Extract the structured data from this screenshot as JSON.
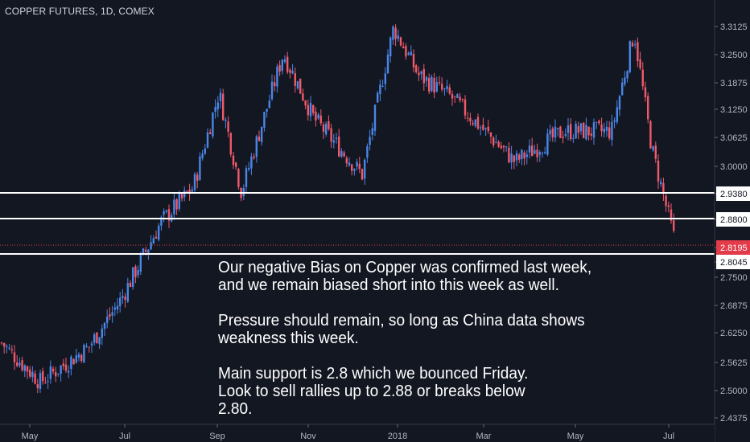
{
  "header": {
    "symbol_title": "COPPER FUTURES, 1D, COMEX"
  },
  "annotation": {
    "paragraphs": [
      [
        "Our negative Bias on Copper was confirmed last week,",
        "and we remain biased short into this week as well."
      ],
      [
        "Pressure should remain, so long as China data shows",
        "weakness this week."
      ],
      [
        "Main support is 2.8 which we bounced Friday.",
        "Look to sell rallies up to 2.88 or breaks below",
        "2.80."
      ]
    ]
  },
  "colors": {
    "background": "#131722",
    "up_candle": "#4a86e8",
    "down_candle": "#f05a6a",
    "level_line": "#ffffff",
    "current_price": "#e23b4a",
    "axis_text": "#b2b5be"
  },
  "chart_data": {
    "type": "candlestick",
    "title": "COPPER FUTURES, 1D, COMEX",
    "xlabel": "",
    "ylabel": "",
    "ylim": [
      2.42,
      3.33
    ],
    "y_ticks": [
      "3.3125",
      "3.2500",
      "3.1875",
      "3.1250",
      "3.0625",
      "3.0000",
      "2.9380",
      "2.8800",
      "2.8195",
      "2.8045",
      "2.7500",
      "2.6875",
      "2.6250",
      "2.5625",
      "2.5000",
      "2.4375"
    ],
    "x_ticks": [
      "May",
      "Jul",
      "Sep",
      "Nov",
      "2018",
      "Mar",
      "May",
      "Jul"
    ],
    "horizontal_levels": [
      2.938,
      2.88,
      2.8045
    ],
    "current_price": 2.8195,
    "price_path": [
      {
        "month": "Apr 2017",
        "close": 2.58
      },
      {
        "month": "May 2017 (low)",
        "close": 2.49
      },
      {
        "month": "Jun 2017",
        "close": 2.57
      },
      {
        "month": "early Jul 2017",
        "close": 2.68
      },
      {
        "month": "late Jul 2017",
        "close": 2.86
      },
      {
        "month": "Aug 2017",
        "close": 2.94
      },
      {
        "month": "early Sep 2017 (high)",
        "close": 3.16
      },
      {
        "month": "late Sep 2017",
        "close": 2.93
      },
      {
        "month": "mid Oct 2017",
        "close": 3.25
      },
      {
        "month": "early Nov 2017",
        "close": 3.1
      },
      {
        "month": "late Nov 2017",
        "close": 2.97
      },
      {
        "month": "late Dec 2017 (high)",
        "close": 3.31
      },
      {
        "month": "Jan 2018",
        "close": 3.2
      },
      {
        "month": "Feb 2018",
        "close": 3.15
      },
      {
        "month": "Mar 2018",
        "close": 3.0
      },
      {
        "month": "Apr 2018",
        "close": 3.07
      },
      {
        "month": "May 2018",
        "close": 3.07
      },
      {
        "month": "early Jun 2018 (high)",
        "close": 3.3
      },
      {
        "month": "late Jun 2018",
        "close": 3.03
      },
      {
        "month": "early Jul 2018",
        "close": 2.82
      }
    ]
  }
}
